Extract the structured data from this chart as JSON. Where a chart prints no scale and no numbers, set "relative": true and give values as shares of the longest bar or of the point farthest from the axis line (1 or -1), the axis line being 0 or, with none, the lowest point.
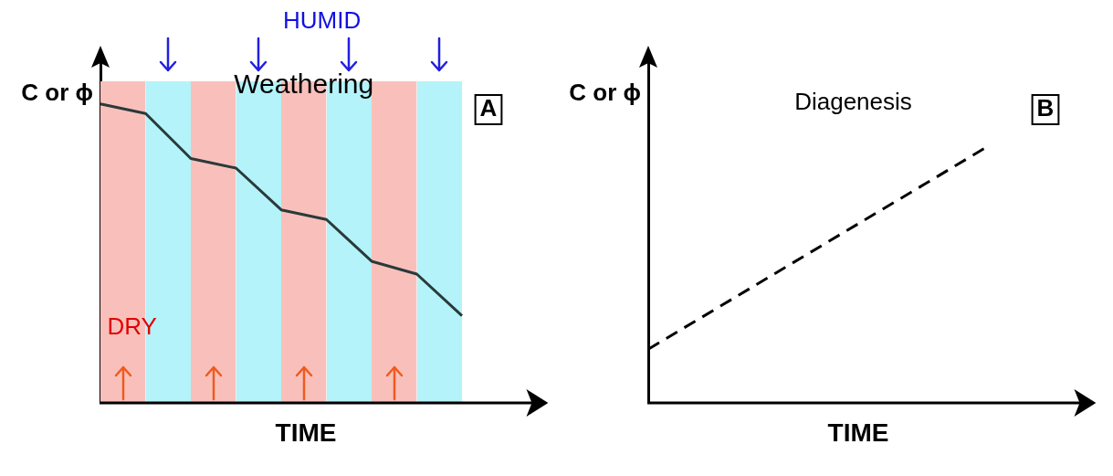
{
  "chart_data": [
    {
      "type": "line",
      "title": "A",
      "xlabel": "TIME",
      "ylabel": "C or ϕ",
      "relative": true,
      "annotations": [
        "Weathering",
        "DRY",
        "HUMID"
      ],
      "categories": [
        null,
        null,
        null,
        null,
        null,
        null,
        null,
        null,
        null,
        null,
        null
      ],
      "series": [
        {
          "color": "#2a3a3a",
          "values": [
            0.93,
            0.9,
            0.76,
            0.73,
            0.6,
            0.57,
            0.44,
            0.4,
            0.27,
            null,
            null
          ]
        },
        {
          "type": "area",
          "color": "#f9c0bb",
          "values": [
            1,
            1,
            null,
            null,
            null,
            null,
            null,
            null,
            null,
            null,
            null
          ]
        },
        {
          "type": "area",
          "color": "#b3f3f9",
          "values": [
            null,
            1,
            1,
            null,
            null,
            null,
            null,
            null,
            null,
            null,
            null
          ]
        },
        {
          "type": "area",
          "color": "#f9c0bb",
          "values": [
            null,
            null,
            1,
            1,
            null,
            null,
            null,
            null,
            null,
            null,
            null
          ]
        },
        {
          "type": "area",
          "color": "#b3f3f9",
          "values": [
            null,
            null,
            null,
            1,
            1,
            null,
            null,
            null,
            null,
            null,
            null
          ]
        },
        {
          "type": "area",
          "color": "#f9c0bb",
          "values": [
            null,
            null,
            null,
            null,
            1,
            1,
            null,
            null,
            null,
            null,
            null
          ]
        },
        {
          "type": "area",
          "color": "#b3f3f9",
          "values": [
            null,
            null,
            null,
            null,
            null,
            1,
            1,
            null,
            null,
            null,
            null
          ]
        },
        {
          "type": "area",
          "color": "#f9c0bb",
          "values": [
            null,
            null,
            null,
            null,
            null,
            null,
            1,
            1,
            null,
            null,
            null
          ]
        },
        {
          "type": "area",
          "color": "#b3f3f9",
          "values": [
            null,
            null,
            null,
            null,
            null,
            null,
            null,
            1,
            1,
            null,
            null
          ]
        }
      ]
    },
    {
      "type": "line",
      "title": "B",
      "xlabel": "TIME",
      "ylabel": "C or ϕ",
      "relative": true,
      "annotations": [
        "Diagenesis"
      ],
      "categories": [
        null,
        null
      ],
      "series": [
        {
          "color": "#000000",
          "line_style": "dashed",
          "values": [
            0.21,
            1
          ]
        }
      ]
    }
  ]
}
